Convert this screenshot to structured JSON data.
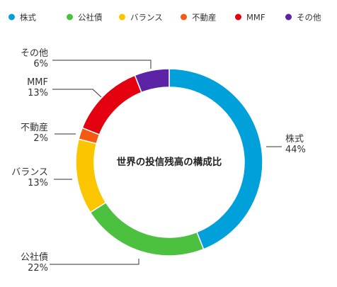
{
  "chart_data": {
    "type": "pie",
    "variant": "donut",
    "title": "世界の投信残高の構成比",
    "legend_position": "top",
    "slices": [
      {
        "name": "株式",
        "value": 44,
        "label": "44%",
        "color": "#00A0DA"
      },
      {
        "name": "公社債",
        "value": 22,
        "label": "22%",
        "color": "#4CC140"
      },
      {
        "name": "バランス",
        "value": 13,
        "label": "13%",
        "color": "#FBC600"
      },
      {
        "name": "不動産",
        "value": 2,
        "label": "2%",
        "color": "#F35A13"
      },
      {
        "name": "MMF",
        "value": 13,
        "label": "13%",
        "color": "#E5000F"
      },
      {
        "name": "その他",
        "value": 6,
        "label": "6%",
        "color": "#5C23A7"
      }
    ]
  }
}
